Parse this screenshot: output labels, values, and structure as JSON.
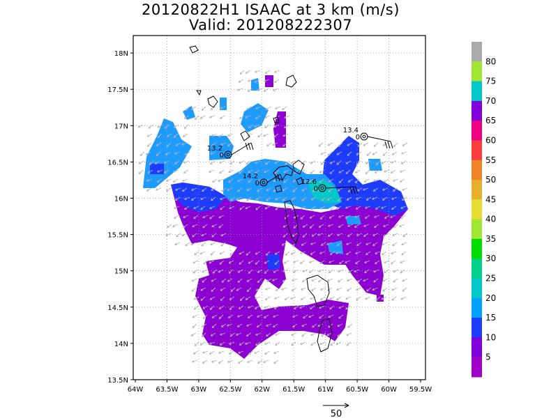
{
  "title": "20120822H1 ISAAC at 3 km (m/s)",
  "subtitle": "Valid: 201208222307",
  "map": {
    "lon_range": [
      -64,
      -59.5
    ],
    "lat_range": [
      13.5,
      18.3
    ],
    "x_ticks": [
      "64W",
      "63.5W",
      "63W",
      "62.5W",
      "62W",
      "61.5W",
      "61W",
      "60.5W",
      "60W",
      "59.5W"
    ],
    "y_ticks": [
      "13.5N",
      "14N",
      "14.5N",
      "15N",
      "15.5N",
      "16N",
      "16.5N",
      "17N",
      "17.5N",
      "18N"
    ],
    "grid": "dotted"
  },
  "colorbar": {
    "labels": [
      "5",
      "10",
      "15",
      "20",
      "25",
      "30",
      "35",
      "40",
      "45",
      "50",
      "55",
      "60",
      "65",
      "70",
      "75",
      "80"
    ],
    "colors": [
      "#a000c8",
      "#8200dc",
      "#1e3cff",
      "#00a0ff",
      "#00c8c8",
      "#00d28c",
      "#00dc00",
      "#a0e632",
      "#e6dc32",
      "#e6af2d",
      "#f08228",
      "#fa3c3c",
      "#f00082",
      "#8200dc",
      "#00c8c8",
      "#a0e632",
      "#aaaaaa"
    ]
  },
  "stations": [
    {
      "value": "13.2",
      "sub": "0"
    },
    {
      "value": "14.2",
      "sub": "0"
    },
    {
      "value": "12.6",
      "sub": "0"
    },
    {
      "value": "13.4",
      "sub": "0"
    }
  ],
  "reference_vector": {
    "label": "50"
  },
  "colors": {
    "purple": "#8c00d2",
    "violet": "#a000c8",
    "blue": "#1e3cff",
    "lightblue": "#1e9bff",
    "cyan": "#00c8c8"
  }
}
